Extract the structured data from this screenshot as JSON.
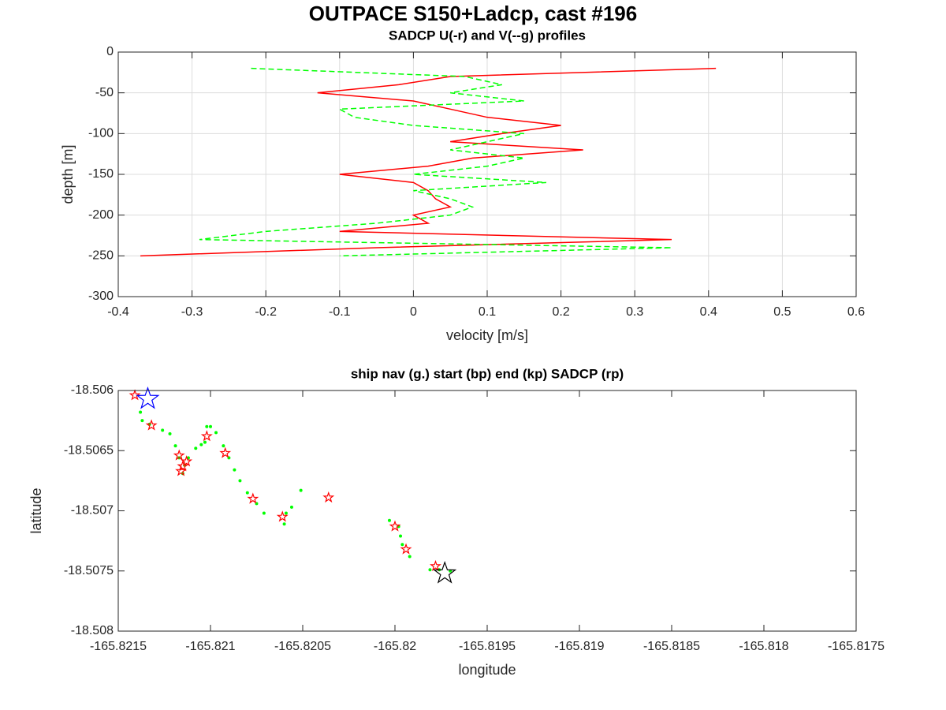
{
  "title": "OUTPACE S150+Ladcp, cast #196",
  "chart_data": [
    {
      "type": "line",
      "title": "SADCP U(-r) and V(--g) profiles",
      "x_label": "velocity [m/s]",
      "y_label": "depth [m]",
      "xlim": [
        -0.4,
        0.6
      ],
      "xticks": [
        -0.4,
        -0.3,
        -0.2,
        -0.1,
        0,
        0.1,
        0.2,
        0.3,
        0.4,
        0.5,
        0.6
      ],
      "ylim": [
        -300,
        0
      ],
      "yticks": [
        -300,
        -250,
        -200,
        -150,
        -100,
        -50,
        0
      ],
      "grid": true,
      "y": [
        -20,
        -30,
        -40,
        -50,
        -60,
        -70,
        -80,
        -90,
        -100,
        -110,
        -120,
        -130,
        -140,
        -150,
        -160,
        -170,
        -180,
        -190,
        -200,
        -210,
        -220,
        -230,
        -240,
        -250
      ],
      "series": [
        {
          "color": "#ff0000",
          "dash": "solid",
          "values": [
            0.41,
            0.05,
            -0.02,
            -0.13,
            0.0,
            0.05,
            0.1,
            0.2,
            0.12,
            0.05,
            0.23,
            0.08,
            0.02,
            -0.1,
            0.0,
            0.02,
            0.03,
            0.05,
            0.0,
            0.02,
            -0.1,
            0.35,
            -0.05,
            -0.37
          ]
        },
        {
          "color": "#00ff00",
          "dash": "dashed",
          "values": [
            -0.22,
            0.07,
            0.12,
            0.05,
            0.15,
            -0.1,
            -0.08,
            0.0,
            0.15,
            0.1,
            0.05,
            0.15,
            0.1,
            0.0,
            0.18,
            0.0,
            0.05,
            0.08,
            0.05,
            -0.05,
            -0.2,
            -0.29,
            0.35,
            -0.1
          ]
        }
      ]
    },
    {
      "type": "scatter",
      "title": "ship nav (g.) start (bp) end (kp) SADCP (rp)",
      "x_label": "longitude",
      "y_label": "latitude",
      "xlim": [
        -165.8215,
        -165.8175
      ],
      "xticks": [
        -165.8215,
        -165.821,
        -165.8205,
        -165.82,
        -165.8195,
        -165.819,
        -165.8185,
        -165.818,
        -165.8175
      ],
      "ylim": [
        -18.508,
        -18.506
      ],
      "yticks": [
        -18.508,
        -18.5075,
        -18.507,
        -18.5065,
        -18.506
      ],
      "grid": false,
      "series": [
        {
          "color": "#00ff00",
          "marker": "point",
          "x": [
            -165.82138,
            -165.82137,
            -165.82133,
            -165.82126,
            -165.82122,
            -165.82119,
            -165.82117,
            -165.82115,
            -165.82114,
            -165.82112,
            -165.82108,
            -165.82105,
            -165.82103,
            -165.82102,
            -165.821,
            -165.82097,
            -165.82093,
            -165.8209,
            -165.82087,
            -165.82084,
            -165.8208,
            -165.82075,
            -165.82071,
            -165.8206,
            -165.82059,
            -165.82056,
            -165.82051,
            -165.82003,
            -165.81998,
            -165.81997,
            -165.81996,
            -165.81992,
            -165.81981,
            -165.81976,
            -165.8197
          ],
          "values": [
            -18.50618,
            -18.50625,
            -18.50628,
            -18.50633,
            -18.50636,
            -18.50646,
            -18.50656,
            -18.50669,
            -18.50662,
            -18.50656,
            -18.50648,
            -18.50645,
            -18.50643,
            -18.5063,
            -18.5063,
            -18.50635,
            -18.50646,
            -18.50656,
            -18.50666,
            -18.50675,
            -18.50685,
            -18.50694,
            -18.50702,
            -18.50711,
            -18.50702,
            -18.50697,
            -18.50683,
            -18.50708,
            -18.50713,
            -18.50721,
            -18.50728,
            -18.50738,
            -18.50749,
            -18.50749,
            -18.5075
          ]
        },
        {
          "color": "#ff0000",
          "marker": "star",
          "x": [
            -165.82141,
            -165.82132,
            -165.82117,
            -165.82116,
            -165.82115,
            -165.82113,
            -165.82102,
            -165.82092,
            -165.82077,
            -165.82061,
            -165.82036,
            -165.82,
            -165.81994,
            -165.81978
          ],
          "values": [
            -18.50604,
            -18.50629,
            -18.50654,
            -18.50667,
            -18.50663,
            -18.50659,
            -18.50638,
            -18.50652,
            -18.5069,
            -18.50705,
            -18.50689,
            -18.50713,
            -18.50732,
            -18.50746
          ]
        },
        {
          "color": "#0000ff",
          "marker": "large-star",
          "x": [
            -165.82134
          ],
          "values": [
            -18.50607
          ]
        },
        {
          "color": "#000000",
          "marker": "large-star",
          "x": [
            -165.81973
          ],
          "values": [
            -18.50752
          ]
        }
      ]
    }
  ]
}
